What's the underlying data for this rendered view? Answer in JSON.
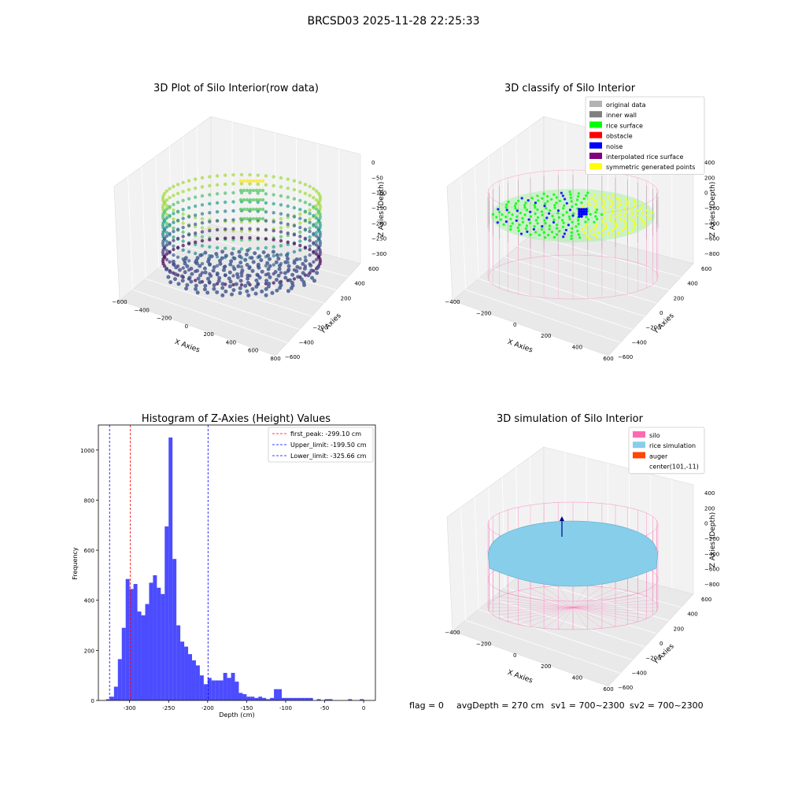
{
  "suptitle": "BRCSD03 2025-11-28 22:25:33",
  "panels": {
    "raw": {
      "title": "3D Plot of Silo Interior(row data)",
      "xlabel": "X Axies",
      "ylabel": "Y Axies",
      "zlabel": "Z Axies (Depth)",
      "xticks": [
        "−600",
        "−400",
        "−200",
        "0",
        "200",
        "400",
        "600",
        "800"
      ],
      "yticks": [
        "−600",
        "−400",
        "−200",
        "0",
        "200",
        "400",
        "600"
      ],
      "zticks": [
        "0",
        "−50",
        "−100",
        "−150",
        "−200",
        "−250",
        "−300"
      ]
    },
    "classify": {
      "title": "3D classify of Silo Interior",
      "xlabel": "X Axies",
      "ylabel": "Y Axies",
      "zlabel": "Z Axies (Depth)",
      "xticks": [
        "−400",
        "−200",
        "0",
        "200",
        "400",
        "600"
      ],
      "yticks": [
        "−600",
        "−400",
        "−200",
        "0",
        "200",
        "400",
        "600"
      ],
      "zticks": [
        "400",
        "200",
        "0",
        "−200",
        "−400",
        "−600",
        "−800"
      ],
      "legend": [
        {
          "label": "original data",
          "color": "#b3b3b3"
        },
        {
          "label": "inner wall",
          "color": "#808080"
        },
        {
          "label": "rice surface",
          "color": "#00ff00"
        },
        {
          "label": "obstacle",
          "color": "#ff0000"
        },
        {
          "label": "noise",
          "color": "#0000ff"
        },
        {
          "label": "interpolated rice surface",
          "color": "#800080"
        },
        {
          "label": "symmetric generated points",
          "color": "#ffff00"
        }
      ]
    },
    "simulation": {
      "title": "3D simulation of Silo Interior",
      "xlabel": "X Axies",
      "ylabel": "Y Axies",
      "zlabel": "Z Axies (Depth)",
      "xticks": [
        "−400",
        "−200",
        "0",
        "200",
        "400",
        "600"
      ],
      "yticks": [
        "−600",
        "−400",
        "−200",
        "0",
        "200",
        "400",
        "600"
      ],
      "zticks": [
        "400",
        "200",
        "0",
        "−200",
        "−400",
        "−600",
        "−800"
      ],
      "legend": [
        {
          "label": "silo",
          "color": "#ff69b4"
        },
        {
          "label": "rice simulation",
          "color": "#87ceeb"
        },
        {
          "label": "auger",
          "color": "#ff4500"
        },
        {
          "label": "center(101,-11)",
          "color": "none"
        }
      ]
    }
  },
  "chart_data": [
    {
      "type": "bar",
      "title": "Histogram of Z-Axies (Height) Values",
      "xlabel": "Depth (cm)",
      "ylabel": "Frequency",
      "xlim": [
        -340,
        15
      ],
      "ylim": [
        0,
        1100
      ],
      "xticks": [
        -300,
        -250,
        -200,
        -150,
        -100,
        -50,
        0
      ],
      "yticks": [
        0,
        200,
        400,
        600,
        800,
        1000
      ],
      "bin_width": 5,
      "bar_color": "#0000ff",
      "bins": [
        {
          "x0": -330,
          "count": 5
        },
        {
          "x0": -325,
          "count": 15
        },
        {
          "x0": -320,
          "count": 55
        },
        {
          "x0": -315,
          "count": 165
        },
        {
          "x0": -310,
          "count": 290
        },
        {
          "x0": -305,
          "count": 485
        },
        {
          "x0": -300,
          "count": 445
        },
        {
          "x0": -295,
          "count": 465
        },
        {
          "x0": -290,
          "count": 355
        },
        {
          "x0": -285,
          "count": 340
        },
        {
          "x0": -280,
          "count": 385
        },
        {
          "x0": -275,
          "count": 470
        },
        {
          "x0": -270,
          "count": 500
        },
        {
          "x0": -265,
          "count": 450
        },
        {
          "x0": -260,
          "count": 425
        },
        {
          "x0": -255,
          "count": 695
        },
        {
          "x0": -250,
          "count": 1050
        },
        {
          "x0": -245,
          "count": 565
        },
        {
          "x0": -240,
          "count": 300
        },
        {
          "x0": -235,
          "count": 235
        },
        {
          "x0": -230,
          "count": 215
        },
        {
          "x0": -225,
          "count": 185
        },
        {
          "x0": -220,
          "count": 160
        },
        {
          "x0": -215,
          "count": 140
        },
        {
          "x0": -210,
          "count": 100
        },
        {
          "x0": -205,
          "count": 65
        },
        {
          "x0": -200,
          "count": 90
        },
        {
          "x0": -195,
          "count": 80
        },
        {
          "x0": -190,
          "count": 80
        },
        {
          "x0": -185,
          "count": 80
        },
        {
          "x0": -180,
          "count": 110
        },
        {
          "x0": -175,
          "count": 90
        },
        {
          "x0": -170,
          "count": 110
        },
        {
          "x0": -165,
          "count": 75
        },
        {
          "x0": -160,
          "count": 30
        },
        {
          "x0": -155,
          "count": 25
        },
        {
          "x0": -150,
          "count": 15
        },
        {
          "x0": -145,
          "count": 15
        },
        {
          "x0": -140,
          "count": 10
        },
        {
          "x0": -135,
          "count": 15
        },
        {
          "x0": -130,
          "count": 10
        },
        {
          "x0": -125,
          "count": 5
        },
        {
          "x0": -120,
          "count": 10
        },
        {
          "x0": -115,
          "count": 45
        },
        {
          "x0": -110,
          "count": 45
        },
        {
          "x0": -105,
          "count": 10
        },
        {
          "x0": -100,
          "count": 10
        },
        {
          "x0": -95,
          "count": 10
        },
        {
          "x0": -90,
          "count": 10
        },
        {
          "x0": -85,
          "count": 10
        },
        {
          "x0": -80,
          "count": 10
        },
        {
          "x0": -75,
          "count": 10
        },
        {
          "x0": -70,
          "count": 10
        },
        {
          "x0": -60,
          "count": 5
        },
        {
          "x0": -50,
          "count": 5
        },
        {
          "x0": -45,
          "count": 5
        },
        {
          "x0": -20,
          "count": 5
        },
        {
          "x0": -5,
          "count": 5
        }
      ],
      "lines": [
        {
          "x": -299.1,
          "label": "first_peak: -299.10 cm",
          "color": "#ff0000"
        },
        {
          "x": -199.5,
          "label": "Upper_limit: -199.50 cm",
          "color": "#0000ff"
        },
        {
          "x": -325.66,
          "label": "Lower_limit: -325.66 cm",
          "color": "#0000ff"
        }
      ],
      "legend_position": "top-right"
    }
  ],
  "footer": {
    "flag": "flag = 0",
    "avgDepth": "avgDepth = 270 cm",
    "sv1": "sv1 = 700~2300",
    "sv2": "sv2 = 700~2300"
  }
}
